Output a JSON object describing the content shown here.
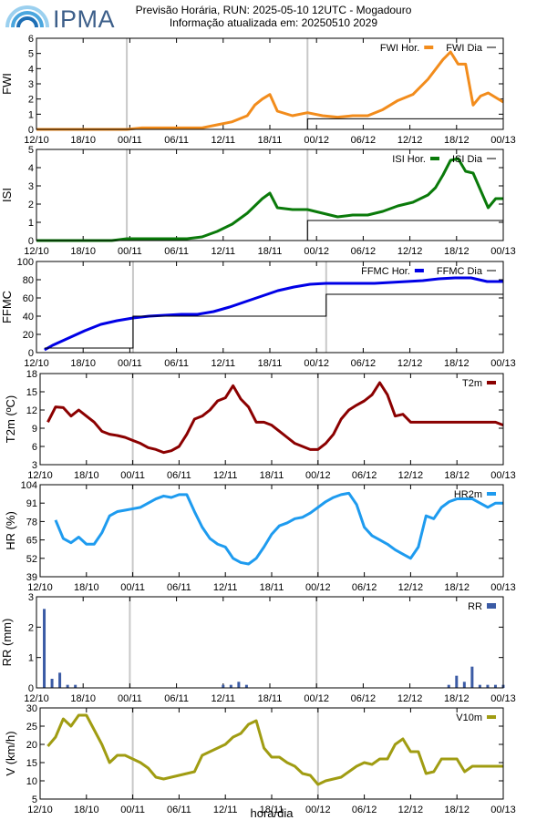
{
  "header": {
    "logo_text": "IPMA",
    "title": "Previsão Horária, RUN: 2025-05-10 12UTC - Mogadouro",
    "subtitle": "Informação atualizada em: 20250510 2029"
  },
  "colors": {
    "fwi": "#f28c1c",
    "isi": "#0a7a0a",
    "ffmc": "#0000e6",
    "t2m": "#8b0000",
    "hr2m": "#1e9bef",
    "rr": "#3b5ba5",
    "v10m": "#a09c12",
    "daily": "#000000",
    "day_line": "#c8c8c8"
  },
  "x_axis_title": "hora/dia",
  "chart_data": [
    {
      "id": "fwi",
      "type": "line",
      "ylabel": "FWI",
      "ylim": [
        0,
        6
      ],
      "yticks": [
        0,
        1,
        2,
        3,
        4,
        5,
        6
      ],
      "legend": "top-right",
      "xrange": [
        0,
        62
      ],
      "xticks_pos": [
        0,
        12,
        24,
        36,
        48,
        60
      ],
      "xticks": [
        "12/10",
        "18/10",
        "00/11",
        "06/11",
        "12/11",
        "18/11",
        "00/12",
        "06/12",
        "12/12",
        "18/12",
        "00/13"
      ],
      "day_lines": [
        12,
        36
      ],
      "series": [
        {
          "name": "FWI Hor.",
          "style": "line",
          "x": [
            0,
            2,
            4,
            6,
            8,
            10,
            12,
            14,
            16,
            18,
            20,
            22,
            24,
            26,
            28,
            29,
            30,
            31,
            32,
            34,
            36,
            38,
            40,
            42,
            44,
            46,
            48,
            50,
            52,
            54,
            55,
            56,
            57,
            58,
            59,
            60,
            62
          ],
          "y": [
            0,
            0,
            0,
            0,
            0,
            0,
            0,
            0.1,
            0.1,
            0.1,
            0.1,
            0.1,
            0.3,
            0.5,
            0.9,
            1.6,
            2.0,
            2.3,
            1.2,
            0.9,
            1.1,
            0.9,
            0.8,
            0.9,
            0.9,
            1.3,
            1.9,
            2.3,
            3.3,
            4.6,
            5.1,
            4.3,
            4.3,
            1.6,
            2.2,
            2.4,
            1.8
          ]
        },
        {
          "name": "FWI Dia",
          "style": "step",
          "x": [
            0,
            12,
            36,
            62
          ],
          "y": [
            0,
            0,
            0.7,
            0.7
          ]
        }
      ]
    },
    {
      "id": "isi",
      "type": "line",
      "ylabel": "ISI",
      "ylim": [
        0,
        5
      ],
      "yticks": [
        0,
        1,
        2,
        3,
        4,
        5
      ],
      "legend": "top-right",
      "xrange": [
        0,
        62
      ],
      "xticks_pos": [
        0,
        12,
        24,
        36,
        48,
        60
      ],
      "xticks": [
        "12/10",
        "18/10",
        "00/11",
        "06/11",
        "12/11",
        "18/11",
        "00/12",
        "06/12",
        "12/12",
        "18/12",
        "00/13"
      ],
      "day_lines": [
        12,
        36
      ],
      "series": [
        {
          "name": "ISI Hor.",
          "style": "line",
          "x": [
            0,
            2,
            4,
            6,
            8,
            10,
            12,
            14,
            16,
            18,
            20,
            22,
            24,
            26,
            28,
            30,
            31,
            32,
            34,
            36,
            38,
            40,
            42,
            44,
            46,
            48,
            50,
            52,
            53,
            54,
            55,
            56,
            57,
            58,
            60,
            61,
            62
          ],
          "y": [
            0,
            0,
            0,
            0,
            0,
            0,
            0.1,
            0.1,
            0.1,
            0.1,
            0.1,
            0.2,
            0.5,
            0.9,
            1.5,
            2.3,
            2.6,
            1.8,
            1.7,
            1.7,
            1.5,
            1.3,
            1.4,
            1.4,
            1.6,
            1.9,
            2.1,
            2.5,
            2.9,
            3.6,
            4.4,
            4.5,
            3.8,
            3.7,
            1.8,
            2.3,
            2.3
          ]
        },
        {
          "name": "ISI Dia",
          "style": "step",
          "x": [
            0,
            12,
            36,
            62
          ],
          "y": [
            0,
            0,
            1.1,
            1.1
          ]
        }
      ]
    },
    {
      "id": "ffmc",
      "type": "line",
      "ylabel": "FFMC",
      "ylim": [
        0,
        100
      ],
      "yticks": [
        0,
        20,
        40,
        60,
        80,
        100
      ],
      "legend": "top-right",
      "xrange": [
        0,
        58
      ],
      "xticks_pos": [
        0,
        12,
        24,
        36,
        48,
        60
      ],
      "xticks": [
        "12/10",
        "18/10",
        "00/11",
        "06/11",
        "12/11",
        "18/11",
        "00/12",
        "06/12",
        "12/12",
        "18/12",
        "00/13"
      ],
      "day_lines": [
        12,
        36
      ],
      "series": [
        {
          "name": "FFMC Hor.",
          "style": "line",
          "x": [
            1,
            2,
            4,
            6,
            8,
            10,
            12,
            14,
            16,
            18,
            20,
            22,
            24,
            26,
            28,
            30,
            32,
            34,
            36,
            38,
            40,
            42,
            44,
            46,
            48,
            50,
            52,
            54,
            56,
            58
          ],
          "y": [
            3,
            8,
            16,
            24,
            31,
            35,
            38,
            40,
            41,
            42,
            42,
            45,
            50,
            56,
            62,
            68,
            72,
            75,
            76,
            76,
            76,
            76,
            77,
            78,
            79,
            81,
            82,
            82,
            78,
            78
          ]
        },
        {
          "name": "FFMC Dia",
          "style": "step",
          "x": [
            1,
            12,
            36,
            58
          ],
          "y": [
            5,
            40,
            64,
            64
          ]
        }
      ]
    },
    {
      "id": "t2m",
      "type": "line",
      "ylabel": "T2m (ºC)",
      "ylim": [
        3,
        18
      ],
      "yticks": [
        3,
        6,
        9,
        12,
        15,
        18
      ],
      "legend": "top-right",
      "xrange": [
        0,
        60
      ],
      "xticks_pos": [
        0,
        12,
        24,
        36,
        48,
        60
      ],
      "xticks": [
        "12/10",
        "18/10",
        "00/11",
        "06/11",
        "12/11",
        "18/11",
        "00/12",
        "06/12",
        "12/12",
        "18/12",
        "00/13"
      ],
      "day_lines": [
        12,
        36
      ],
      "series": [
        {
          "name": "T2m",
          "style": "line",
          "x": [
            1,
            2,
            3,
            4,
            5,
            6,
            7,
            8,
            9,
            10,
            11,
            12,
            13,
            14,
            15,
            16,
            17,
            18,
            19,
            20,
            21,
            22,
            23,
            24,
            25,
            26,
            27,
            28,
            29,
            30,
            31,
            32,
            33,
            34,
            35,
            36,
            37,
            38,
            39,
            40,
            41,
            42,
            43,
            44,
            45,
            46,
            47,
            48,
            49,
            50,
            51,
            52,
            53,
            54,
            55,
            56,
            57,
            58,
            59,
            60
          ],
          "y": [
            10,
            12.5,
            12.4,
            11,
            12,
            11,
            10,
            8.5,
            8,
            7.8,
            7.5,
            7,
            6.5,
            5.8,
            5.5,
            5,
            5.3,
            6,
            8,
            10.5,
            11,
            12,
            13.5,
            14,
            16,
            13.8,
            12.5,
            10,
            10,
            9.5,
            8.5,
            7.5,
            6.5,
            6,
            5.5,
            5.5,
            6.5,
            8,
            10.5,
            12,
            12.8,
            13.5,
            14.5,
            16.5,
            14.5,
            11,
            11.3,
            10,
            10,
            10,
            10,
            10,
            10,
            10,
            10,
            10,
            10,
            10,
            10,
            9.5
          ]
        }
      ]
    },
    {
      "id": "hr2m",
      "type": "line",
      "ylabel": "HR (%)",
      "ylim": [
        39,
        104
      ],
      "yticks": [
        39,
        52,
        65,
        78,
        91,
        104
      ],
      "legend": "top-right",
      "xrange": [
        0,
        60
      ],
      "xticks_pos": [
        0,
        12,
        24,
        36,
        48,
        60
      ],
      "xticks": [
        "12/10",
        "18/10",
        "00/11",
        "06/11",
        "12/11",
        "18/11",
        "00/12",
        "06/12",
        "12/12",
        "18/12",
        "00/13"
      ],
      "day_lines": [
        12,
        36
      ],
      "series": [
        {
          "name": "HR2m",
          "style": "line",
          "x": [
            2,
            3,
            4,
            5,
            6,
            7,
            8,
            9,
            10,
            11,
            12,
            13,
            14,
            15,
            16,
            17,
            18,
            19,
            20,
            21,
            22,
            23,
            24,
            25,
            26,
            27,
            28,
            29,
            30,
            31,
            32,
            33,
            34,
            35,
            36,
            37,
            38,
            39,
            40,
            41,
            42,
            43,
            44,
            45,
            46,
            47,
            48,
            49,
            50,
            51,
            52,
            53,
            54,
            55,
            56,
            57,
            58,
            59,
            60
          ],
          "y": [
            79,
            66,
            63,
            67,
            62,
            62,
            70,
            82,
            85,
            86,
            87,
            88,
            91,
            94,
            96,
            95,
            97,
            97,
            85,
            74,
            66,
            62,
            60,
            52,
            49,
            48,
            52,
            60,
            69,
            75,
            77,
            80,
            81,
            84,
            88,
            92,
            95,
            97,
            98,
            90,
            74,
            68,
            65,
            62,
            58,
            55,
            52,
            60,
            82,
            80,
            88,
            92,
            94,
            94,
            94,
            91,
            88,
            91,
            91
          ]
        }
      ]
    },
    {
      "id": "rr",
      "type": "bar",
      "ylabel": "RR (mm)",
      "ylim": [
        0,
        3
      ],
      "yticks": [
        0,
        1,
        2,
        3
      ],
      "legend": "top-right",
      "xrange": [
        0,
        60
      ],
      "xticks_pos": [
        0,
        12,
        24,
        36,
        48,
        60
      ],
      "xticks": [
        "12/10",
        "18/10",
        "00/11",
        "06/11",
        "12/11",
        "18/11",
        "00/12",
        "06/12",
        "12/12",
        "18/12",
        "00/13"
      ],
      "day_lines": [
        12,
        36
      ],
      "series": [
        {
          "name": "RR",
          "style": "bar",
          "x": [
            1,
            2,
            3,
            4,
            5,
            24,
            25,
            26,
            27,
            53,
            54,
            55,
            56,
            57,
            58,
            59,
            60
          ],
          "y": [
            2.6,
            0.3,
            0.5,
            0.1,
            0.1,
            0.1,
            0.1,
            0.2,
            0.1,
            0.1,
            0.4,
            0.2,
            0.7,
            0.1,
            0.1,
            0.1,
            0.1
          ]
        }
      ]
    },
    {
      "id": "v10m",
      "type": "line",
      "ylabel": "V (km/h)",
      "ylim": [
        5,
        30
      ],
      "yticks": [
        5,
        10,
        15,
        20,
        25,
        30
      ],
      "legend": "top-right",
      "xrange": [
        0,
        60
      ],
      "xticks_pos": [
        0,
        12,
        24,
        36,
        48,
        60
      ],
      "xticks": [
        "12/10",
        "18/10",
        "00/11",
        "06/11",
        "12/11",
        "18/11",
        "00/12",
        "06/12",
        "12/12",
        "18/12",
        "00/13"
      ],
      "day_lines": [
        12,
        36
      ],
      "series": [
        {
          "name": "V10m",
          "style": "line",
          "x": [
            1,
            2,
            3,
            4,
            5,
            6,
            7,
            8,
            9,
            10,
            11,
            12,
            13,
            14,
            15,
            16,
            17,
            18,
            19,
            20,
            21,
            22,
            23,
            24,
            25,
            26,
            27,
            28,
            29,
            30,
            31,
            32,
            33,
            34,
            35,
            36,
            37,
            38,
            39,
            40,
            41,
            42,
            43,
            44,
            45,
            46,
            47,
            48,
            49,
            50,
            51,
            52,
            53,
            54,
            55,
            56,
            57,
            58,
            59,
            60
          ],
          "y": [
            19.5,
            22,
            27,
            25,
            28,
            28,
            24,
            20,
            15,
            17,
            17,
            16,
            15,
            13.5,
            11,
            10.5,
            11,
            11.5,
            12,
            12.5,
            17,
            18,
            19,
            20,
            22,
            23,
            25.5,
            26.5,
            19,
            16.5,
            16.5,
            15,
            14,
            12,
            11.5,
            9,
            10,
            10.5,
            11,
            12.5,
            14,
            15,
            14.5,
            16,
            16,
            20,
            21.5,
            18,
            18,
            12,
            12.5,
            16,
            16,
            16,
            12.5,
            14,
            14,
            14,
            14,
            14
          ]
        }
      ]
    }
  ]
}
